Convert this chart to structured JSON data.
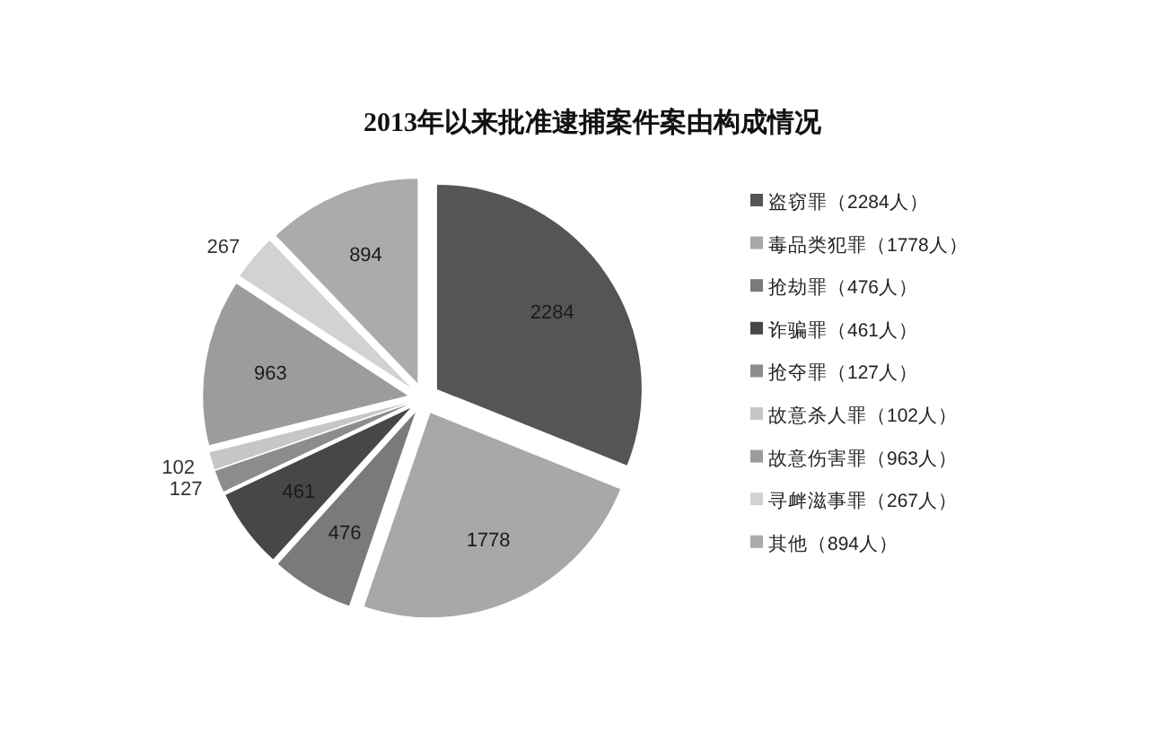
{
  "chart_data": {
    "type": "pie",
    "title": "2013年以来批准逮捕案件案由构成情况",
    "categories": [
      "盗窃罪（2284人）",
      "毒品类犯罪（1778人）",
      "抢劫罪（476人）",
      "诈骗罪（461人）",
      "抢夺罪（127人）",
      "故意杀人罪（102人）",
      "故意伤害罪（963人）",
      "寻衅滋事罪（267人）",
      "其他（894人）"
    ],
    "values": [
      2284,
      1778,
      476,
      461,
      127,
      102,
      963,
      267,
      894
    ],
    "colors": [
      "#555555",
      "#a8a8a8",
      "#7a7a7a",
      "#474747",
      "#8c8c8c",
      "#c6c6c6",
      "#9c9c9c",
      "#d2d2d2",
      "#ababab"
    ],
    "data_labels": true,
    "legend": "right"
  }
}
